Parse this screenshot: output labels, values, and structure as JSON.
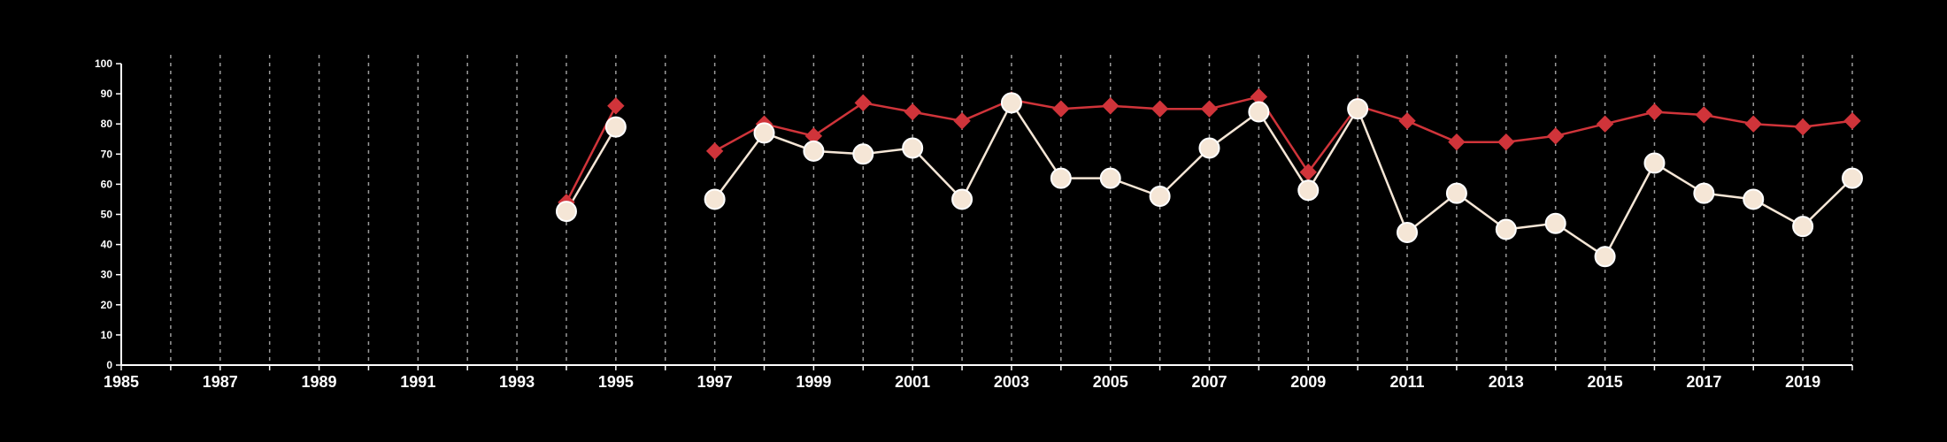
{
  "chart_data": {
    "type": "line",
    "title": "",
    "xlabel": "",
    "ylabel": "",
    "xlim": [
      1985,
      2020
    ],
    "ylim": [
      0,
      100
    ],
    "x_ticks": [
      1985,
      1987,
      1989,
      1991,
      1993,
      1995,
      1997,
      1999,
      2001,
      2003,
      2005,
      2007,
      2009,
      2011,
      2013,
      2015,
      2017,
      2019
    ],
    "x_tick_labels": [
      "1985",
      "1987",
      "1989",
      "1991",
      "1993",
      "1995",
      "1997",
      "1999",
      "2001",
      "2003",
      "2005",
      "2007",
      "2009",
      "2011",
      "2013",
      "2015",
      "2017",
      "2019"
    ],
    "y_ticks": [
      0,
      10,
      20,
      30,
      40,
      50,
      60,
      70,
      80,
      90,
      100
    ],
    "y_tick_labels": [
      "0",
      "10",
      "20",
      "30",
      "40",
      "50",
      "60",
      "70",
      "80",
      "90",
      "100"
    ],
    "grid": {
      "vertical_dashed": true,
      "every_year": true
    },
    "legend": "none",
    "series": [
      {
        "marker": "diamond",
        "color": "#d0343a",
        "points": [
          [
            1994,
            54
          ],
          [
            1995,
            86
          ],
          [
            1997,
            71
          ],
          [
            1998,
            80
          ],
          [
            1999,
            76
          ],
          [
            2000,
            87
          ],
          [
            2001,
            84
          ],
          [
            2002,
            81
          ],
          [
            2003,
            88
          ],
          [
            2004,
            85
          ],
          [
            2005,
            86
          ],
          [
            2006,
            85
          ],
          [
            2007,
            85
          ],
          [
            2008,
            89
          ],
          [
            2009,
            64
          ],
          [
            2010,
            86
          ],
          [
            2011,
            81
          ],
          [
            2012,
            74
          ],
          [
            2013,
            74
          ],
          [
            2014,
            76
          ],
          [
            2015,
            80
          ],
          [
            2016,
            84
          ],
          [
            2017,
            83
          ],
          [
            2018,
            80
          ],
          [
            2019,
            79
          ],
          [
            2020,
            81
          ]
        ]
      },
      {
        "marker": "circle",
        "color": "#f5e6d6",
        "points": [
          [
            1994,
            51
          ],
          [
            1995,
            79
          ],
          [
            1997,
            55
          ],
          [
            1998,
            77
          ],
          [
            1999,
            71
          ],
          [
            2000,
            70
          ],
          [
            2001,
            72
          ],
          [
            2002,
            55
          ],
          [
            2003,
            87
          ],
          [
            2004,
            62
          ],
          [
            2005,
            62
          ],
          [
            2006,
            56
          ],
          [
            2007,
            72
          ],
          [
            2008,
            84
          ],
          [
            2009,
            58
          ],
          [
            2010,
            85
          ],
          [
            2011,
            44
          ],
          [
            2012,
            57
          ],
          [
            2013,
            45
          ],
          [
            2014,
            47
          ],
          [
            2015,
            36
          ],
          [
            2016,
            67
          ],
          [
            2017,
            57
          ],
          [
            2018,
            55
          ],
          [
            2019,
            46
          ],
          [
            2020,
            62
          ]
        ]
      }
    ]
  }
}
